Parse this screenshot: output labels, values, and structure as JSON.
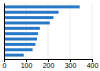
{
  "chart_data": {
    "type": "bar",
    "orientation": "horizontal",
    "categories": [
      null,
      null,
      null,
      null,
      null,
      null,
      null,
      null,
      null,
      null
    ],
    "values": [
      344,
      248,
      225,
      208,
      163,
      155,
      150,
      143,
      130,
      90
    ],
    "color": "#2878c8",
    "xlim": [
      0,
      400
    ],
    "xticks": [
      0,
      100,
      200,
      300,
      400
    ],
    "grid": true
  }
}
